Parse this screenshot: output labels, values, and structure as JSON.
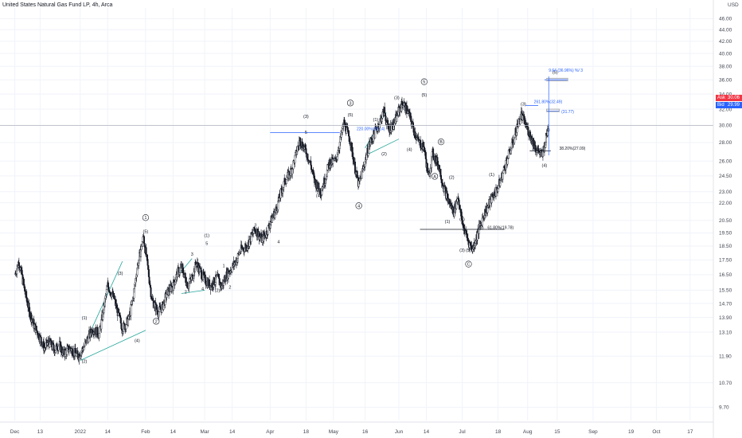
{
  "header": {
    "title": "United States Natural Gas Fund LP, 4h, Arca"
  },
  "price_axis": {
    "currency": "USD",
    "ask_label": "Ask",
    "ask_value": "30.06",
    "bid_label": "Bid",
    "bid_value": "29.99"
  },
  "colors": {
    "candle": "#131722",
    "trendline": "#26a69a",
    "fib_blue": "#2962ff",
    "black_line": "#131722",
    "grid": "#f0f3fa",
    "ask": "#f23645",
    "bid": "#2962ff",
    "box": "#b2b5be"
  },
  "chart_data": {
    "type": "candlestick",
    "title": "United States Natural Gas Fund LP, 4h, Arca",
    "y_scale": "log",
    "ylim": [
      9.2,
      48
    ],
    "y_ticks": [
      "9.70",
      "10.70",
      "11.90",
      "13.10",
      "13.90",
      "14.70",
      "15.50",
      "16.50",
      "17.50",
      "18.50",
      "19.50",
      "20.50",
      "22.00",
      "23.00",
      "24.50",
      "26.00",
      "28.00",
      "30.00",
      "32.00",
      "34.00",
      "36.00",
      "38.00",
      "40.00",
      "42.00",
      "44.00",
      "46.00"
    ],
    "x_ticks": [
      "Dec",
      "13",
      "2022",
      "14",
      "Feb",
      "14",
      "Mar",
      "14",
      "Apr",
      "18",
      "May",
      "16",
      "Jun",
      "14",
      "Jul",
      "18",
      "Aug",
      "15",
      "Sep",
      "19",
      "Oct",
      "17"
    ],
    "price_path": [
      {
        "date": "2021-12-01",
        "close": 16.5
      },
      {
        "date": "2021-12-03",
        "close": 17.4
      },
      {
        "date": "2021-12-06",
        "close": 15.3
      },
      {
        "date": "2021-12-08",
        "close": 14.2
      },
      {
        "date": "2021-12-10",
        "close": 13.5
      },
      {
        "date": "2021-12-13",
        "close": 12.8
      },
      {
        "date": "2021-12-15",
        "close": 12.3
      },
      {
        "date": "2021-12-17",
        "close": 12.6
      },
      {
        "date": "2021-12-20",
        "close": 12.2
      },
      {
        "date": "2021-12-22",
        "close": 12.5
      },
      {
        "date": "2021-12-24",
        "close": 12.0
      },
      {
        "date": "2021-12-27",
        "close": 12.3
      },
      {
        "date": "2021-12-29",
        "close": 12.1
      },
      {
        "date": "2021-12-31",
        "close": 11.9
      },
      {
        "date": "2022-01-03",
        "close": 12.4
      },
      {
        "date": "2022-01-05",
        "close": 12.9
      },
      {
        "date": "2022-01-07",
        "close": 13.3
      },
      {
        "date": "2022-01-10",
        "close": 13.0
      },
      {
        "date": "2022-01-12",
        "close": 14.3
      },
      {
        "date": "2022-01-14",
        "close": 15.8
      },
      {
        "date": "2022-01-17",
        "close": 15.0
      },
      {
        "date": "2022-01-19",
        "close": 14.1
      },
      {
        "date": "2022-01-21",
        "close": 13.3
      },
      {
        "date": "2022-01-24",
        "close": 13.8
      },
      {
        "date": "2022-01-26",
        "close": 15.0
      },
      {
        "date": "2022-01-28",
        "close": 17.0
      },
      {
        "date": "2022-01-31",
        "close": 19.2
      },
      {
        "date": "2022-02-02",
        "close": 17.0
      },
      {
        "date": "2022-02-04",
        "close": 14.9
      },
      {
        "date": "2022-02-07",
        "close": 14.2
      },
      {
        "date": "2022-02-09",
        "close": 14.5
      },
      {
        "date": "2022-02-11",
        "close": 15.3
      },
      {
        "date": "2022-02-14",
        "close": 15.8
      },
      {
        "date": "2022-02-16",
        "close": 16.6
      },
      {
        "date": "2022-02-18",
        "close": 17.0
      },
      {
        "date": "2022-02-21",
        "close": 15.8
      },
      {
        "date": "2022-02-23",
        "close": 16.3
      },
      {
        "date": "2022-02-25",
        "close": 17.3
      },
      {
        "date": "2022-02-28",
        "close": 16.4
      },
      {
        "date": "2022-03-02",
        "close": 16.0
      },
      {
        "date": "2022-03-04",
        "close": 15.8
      },
      {
        "date": "2022-03-07",
        "close": 16.3
      },
      {
        "date": "2022-03-09",
        "close": 15.7
      },
      {
        "date": "2022-03-11",
        "close": 16.4
      },
      {
        "date": "2022-03-14",
        "close": 17.0
      },
      {
        "date": "2022-03-16",
        "close": 17.5
      },
      {
        "date": "2022-03-18",
        "close": 18.2
      },
      {
        "date": "2022-03-21",
        "close": 18.5
      },
      {
        "date": "2022-03-23",
        "close": 19.2
      },
      {
        "date": "2022-03-25",
        "close": 19.8
      },
      {
        "date": "2022-03-28",
        "close": 19.0
      },
      {
        "date": "2022-03-30",
        "close": 19.4
      },
      {
        "date": "2022-04-01",
        "close": 20.3
      },
      {
        "date": "2022-04-04",
        "close": 21.5
      },
      {
        "date": "2022-04-06",
        "close": 22.8
      },
      {
        "date": "2022-04-08",
        "close": 24.0
      },
      {
        "date": "2022-04-11",
        "close": 25.0
      },
      {
        "date": "2022-04-13",
        "close": 26.5
      },
      {
        "date": "2022-04-15",
        "close": 28.3
      },
      {
        "date": "2022-04-18",
        "close": 27.0
      },
      {
        "date": "2022-04-20",
        "close": 25.8
      },
      {
        "date": "2022-04-22",
        "close": 24.0
      },
      {
        "date": "2022-04-25",
        "close": 23.0
      },
      {
        "date": "2022-04-27",
        "close": 24.2
      },
      {
        "date": "2022-04-29",
        "close": 25.8
      },
      {
        "date": "2022-05-02",
        "close": 26.0
      },
      {
        "date": "2022-05-04",
        "close": 28.0
      },
      {
        "date": "2022-05-06",
        "close": 30.3
      },
      {
        "date": "2022-05-09",
        "close": 28.2
      },
      {
        "date": "2022-05-11",
        "close": 25.5
      },
      {
        "date": "2022-05-13",
        "close": 23.6
      },
      {
        "date": "2022-05-16",
        "close": 26.0
      },
      {
        "date": "2022-05-18",
        "close": 27.8
      },
      {
        "date": "2022-05-20",
        "close": 28.8
      },
      {
        "date": "2022-05-23",
        "close": 30.5
      },
      {
        "date": "2022-05-25",
        "close": 31.8
      },
      {
        "date": "2022-05-27",
        "close": 29.5
      },
      {
        "date": "2022-05-30",
        "close": 30.3
      },
      {
        "date": "2022-06-01",
        "close": 31.9
      },
      {
        "date": "2022-06-03",
        "close": 32.8
      },
      {
        "date": "2022-06-06",
        "close": 31.2
      },
      {
        "date": "2022-06-08",
        "close": 29.5
      },
      {
        "date": "2022-06-10",
        "close": 28.2
      },
      {
        "date": "2022-06-13",
        "close": 27.4
      },
      {
        "date": "2022-06-15",
        "close": 24.3
      },
      {
        "date": "2022-06-17",
        "close": 26.8
      },
      {
        "date": "2022-06-20",
        "close": 25.5
      },
      {
        "date": "2022-06-22",
        "close": 23.6
      },
      {
        "date": "2022-06-24",
        "close": 22.4
      },
      {
        "date": "2022-06-27",
        "close": 21.2
      },
      {
        "date": "2022-06-29",
        "close": 22.6
      },
      {
        "date": "2022-07-01",
        "close": 20.3
      },
      {
        "date": "2022-07-04",
        "close": 18.8
      },
      {
        "date": "2022-07-06",
        "close": 18.3
      },
      {
        "date": "2022-07-08",
        "close": 19.3
      },
      {
        "date": "2022-07-11",
        "close": 20.9
      },
      {
        "date": "2022-07-13",
        "close": 21.6
      },
      {
        "date": "2022-07-15",
        "close": 22.4
      },
      {
        "date": "2022-07-18",
        "close": 23.4
      },
      {
        "date": "2022-07-20",
        "close": 24.6
      },
      {
        "date": "2022-07-22",
        "close": 26.0
      },
      {
        "date": "2022-07-25",
        "close": 28.0
      },
      {
        "date": "2022-07-27",
        "close": 29.8
      },
      {
        "date": "2022-07-29",
        "close": 31.3
      },
      {
        "date": "2022-08-01",
        "close": 29.5
      },
      {
        "date": "2022-08-03",
        "close": 28.4
      },
      {
        "date": "2022-08-05",
        "close": 27.3
      },
      {
        "date": "2022-08-08",
        "close": 26.6
      },
      {
        "date": "2022-08-10",
        "close": 28.8
      },
      {
        "date": "2022-08-11",
        "close": 29.99
      }
    ],
    "wave_labels": [
      {
        "text": "(1)",
        "date": "2022-01-03",
        "price": 13.8
      },
      {
        "text": "(2)",
        "date": "2022-01-03",
        "price": 11.6
      },
      {
        "text": "(3)",
        "date": "2022-01-20",
        "price": 16.5
      },
      {
        "text": "(4)",
        "date": "2022-01-28",
        "price": 12.6
      },
      {
        "text": "1",
        "date": "2022-02-01",
        "price": 20.6
      },
      {
        "text": "(5)",
        "date": "2022-02-01",
        "price": 19.5
      },
      {
        "text": "2",
        "date": "2022-02-06",
        "price": 13.6
      },
      {
        "text": "1",
        "date": "2022-02-18",
        "price": 16.6
      },
      {
        "text": "2",
        "date": "2022-02-20",
        "price": 15.3
      },
      {
        "text": "3",
        "date": "2022-02-23",
        "price": 17.8
      },
      {
        "text": "4",
        "date": "2022-02-28",
        "price": 15.5
      },
      {
        "text": "5",
        "date": "2022-03-02",
        "price": 18.6
      },
      {
        "text": "(1)",
        "date": "2022-03-02",
        "price": 19.2
      },
      {
        "text": "(2)",
        "date": "2022-03-07",
        "price": 15.4
      },
      {
        "text": "1",
        "date": "2022-03-10",
        "price": 17.0
      },
      {
        "text": "2",
        "date": "2022-03-13",
        "price": 15.6
      },
      {
        "text": "3",
        "date": "2022-03-25",
        "price": 20.0
      },
      {
        "text": "4",
        "date": "2022-04-05",
        "price": 18.7
      },
      {
        "text": "(3)",
        "date": "2022-04-18",
        "price": 30.9
      },
      {
        "text": "5",
        "date": "2022-04-18",
        "price": 29.0
      },
      {
        "text": "(4)",
        "date": "2022-04-24",
        "price": 22.5
      },
      {
        "text": "3",
        "date": "2022-05-09",
        "price": 32.6
      },
      {
        "text": "(5)",
        "date": "2022-05-09",
        "price": 31.1
      },
      {
        "text": "4",
        "date": "2022-05-13",
        "price": 21.6
      },
      {
        "text": "(1)",
        "date": "2022-05-21",
        "price": 30.5
      },
      {
        "text": "(2)",
        "date": "2022-05-25",
        "price": 26.6
      },
      {
        "text": "(3)",
        "date": "2022-05-31",
        "price": 33.3
      },
      {
        "text": "(4)",
        "date": "2022-06-06",
        "price": 27.1
      },
      {
        "text": "5",
        "date": "2022-06-13",
        "price": 35.5
      },
      {
        "text": "(5)",
        "date": "2022-06-13",
        "price": 33.7
      },
      {
        "text": "A",
        "date": "2022-06-18",
        "price": 24.3
      },
      {
        "text": "B",
        "date": "2022-06-21",
        "price": 27.9
      },
      {
        "text": "(2)",
        "date": "2022-06-26",
        "price": 24.2
      },
      {
        "text": "(1)",
        "date": "2022-06-24",
        "price": 20.3
      },
      {
        "text": "(4)",
        "date": "2022-07-01",
        "price": 20.5
      },
      {
        "text": "(3)",
        "date": "2022-07-01",
        "price": 18.1
      },
      {
        "text": "(5)",
        "date": "2022-07-04",
        "price": 18.1
      },
      {
        "text": "C",
        "date": "2022-07-04",
        "price": 17.1
      },
      {
        "text": "(2)",
        "date": "2022-07-10",
        "price": 19.8
      },
      {
        "text": "(1)",
        "date": "2022-07-15",
        "price": 24.5
      },
      {
        "text": "(3)",
        "date": "2022-07-30",
        "price": 32.5
      },
      {
        "text": "(4)",
        "date": "2022-08-09",
        "price": 25.4
      },
      {
        "text": "(5)",
        "date": "2022-08-14",
        "price": 36.9
      }
    ],
    "fib_annotations": [
      {
        "text": "220.00%(29.14)",
        "date": "2022-05-12",
        "price": 29.4
      },
      {
        "text": "61.80%(19.78)",
        "date": "2022-07-13",
        "price": 19.8
      },
      {
        "text": "261.80%(32.49)",
        "date": "2022-08-04",
        "price": 32.8
      },
      {
        "text": "38.20%(27.09)",
        "date": "2022-08-16",
        "price": 27.2
      },
      {
        "text": "(31.77)",
        "date": "2022-08-17",
        "price": 31.5
      },
      {
        "text": "9.64 (36.96%) %/ 3",
        "date": "2022-08-11",
        "price": 37.2
      }
    ]
  }
}
